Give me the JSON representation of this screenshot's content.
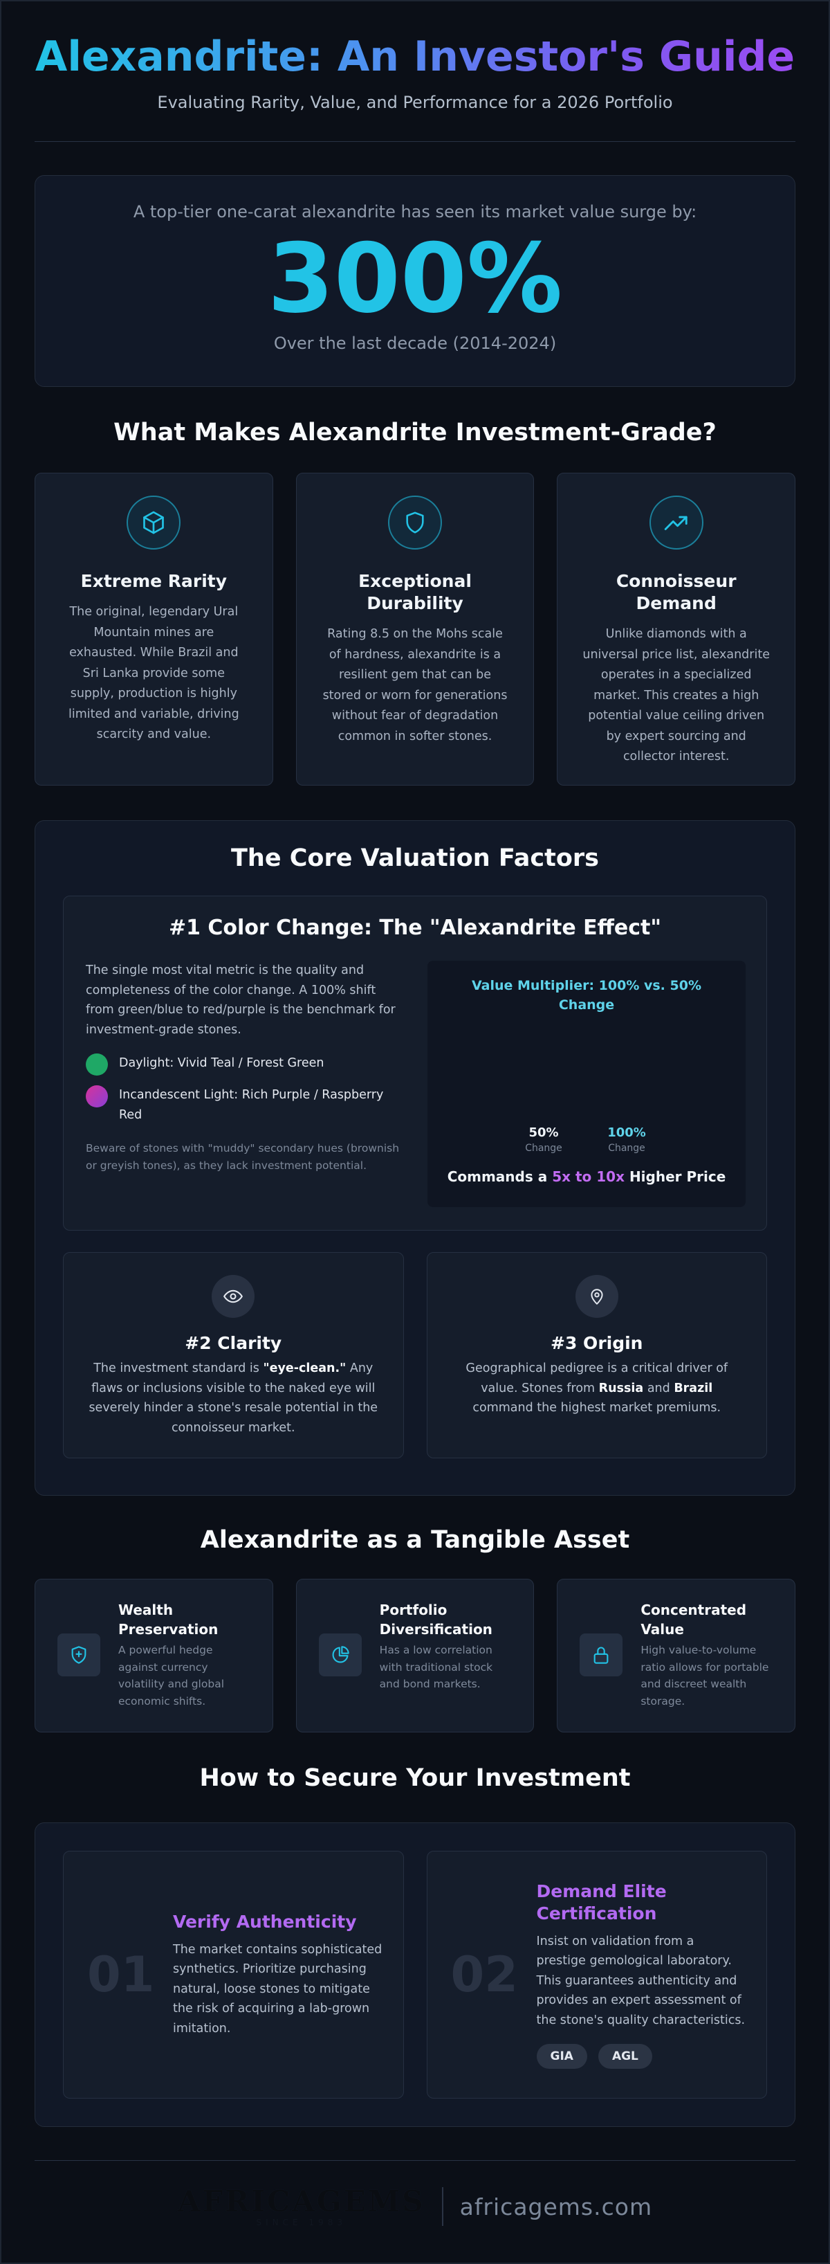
{
  "header": {
    "title": "Alexandrite: An Investor's Guide",
    "subtitle": "Evaluating Rarity, Value, and Performance for a 2026 Portfolio"
  },
  "stat": {
    "pre": "A top-tier one-carat alexandrite has seen its market value surge by:",
    "value": "300%",
    "post": "Over the last decade (2014-2024)"
  },
  "investment_grade": {
    "title": "What Makes Alexandrite Investment-Grade?",
    "cards": [
      {
        "icon": "cube-icon",
        "title": "Extreme Rarity",
        "text": "The original, legendary Ural Mountain mines are exhausted. While Brazil and Sri Lanka provide some supply, production is highly limited and variable, driving scarcity and value."
      },
      {
        "icon": "shield-icon",
        "title": "Exceptional Durability",
        "text": "Rating 8.5 on the Mohs scale of hardness, alexandrite is a resilient gem that can be stored or worn for generations without fear of degradation common in softer stones."
      },
      {
        "icon": "trending-up-icon",
        "title": "Connoisseur Demand",
        "text": "Unlike diamonds with a universal price list, alexandrite operates in a specialized market. This creates a high potential value ceiling driven by expert sourcing and collector interest."
      }
    ]
  },
  "valuation": {
    "title": "The Core Valuation Factors",
    "color_change": {
      "title": "#1 Color Change: The \"Alexandrite Effect\"",
      "text": "The single most vital metric is the quality and completeness of the color change. A 100% shift from green/blue to red/purple is the benchmark for investment-grade stones.",
      "daylight": "Daylight: Vivid Teal / Forest Green",
      "incandescent": "Incandescent Light: Rich Purple / Raspberry Red",
      "note": "Beware of stones with \"muddy\" secondary hues (brownish or greyish tones), as they lack investment potential.",
      "colors": {
        "daylight": "#1fa866",
        "incandescent_from": "#d6339a",
        "incandescent_to": "#8a3fd6"
      }
    },
    "multiplier": {
      "title": "Value Multiplier: 100% vs. 50% Change",
      "bars": [
        {
          "value": "50%",
          "sub": "Change"
        },
        {
          "value": "100%",
          "sub": "Change"
        }
      ],
      "foot_pre": "Commands a",
      "foot_hl": "5x to 10x",
      "foot_post": "Higher Price"
    },
    "clarity": {
      "title": "#2 Clarity",
      "text_pre": "The investment standard is",
      "text_bold": "\"eye-clean.\"",
      "text_post": "Any flaws or inclusions visible to the naked eye will severely hinder a stone's resale potential in the connoisseur market."
    },
    "origin": {
      "title": "#3 Origin",
      "text_pre": "Geographical pedigree is a critical driver of value. Stones from",
      "bold1": "Russia",
      "mid": "and",
      "bold2": "Brazil",
      "text_post": "command the highest market premiums."
    }
  },
  "tangible": {
    "title": "Alexandrite as a Tangible Asset",
    "cards": [
      {
        "icon": "shield-plus-icon",
        "title": "Wealth Preservation",
        "text": "A powerful hedge against currency volatility and global economic shifts."
      },
      {
        "icon": "pie-chart-icon",
        "title": "Portfolio Diversification",
        "text": "Has a low correlation with traditional stock and bond markets."
      },
      {
        "icon": "lock-icon",
        "title": "Concentrated Value",
        "text": "High value-to-volume ratio allows for portable and discreet wealth storage."
      }
    ]
  },
  "secure": {
    "title": "How to Secure Your Investment",
    "steps": [
      {
        "num": "01",
        "title": "Verify Authenticity",
        "text": "The market contains sophisticated synthetics. Prioritize purchasing natural, loose stones to mitigate the risk of acquiring a lab-grown imitation."
      },
      {
        "num": "02",
        "title": "Demand Elite Certification",
        "text": "Insist on validation from a prestige gemological laboratory. This guarantees authenticity and provides an expert assessment of the stone's quality characteristics.",
        "tags": [
          "GIA",
          "AGL"
        ]
      }
    ]
  },
  "footer": {
    "logo": "AFRICAGEMS",
    "logo_sub": "SINCE 1983",
    "site": "africagems.com"
  }
}
